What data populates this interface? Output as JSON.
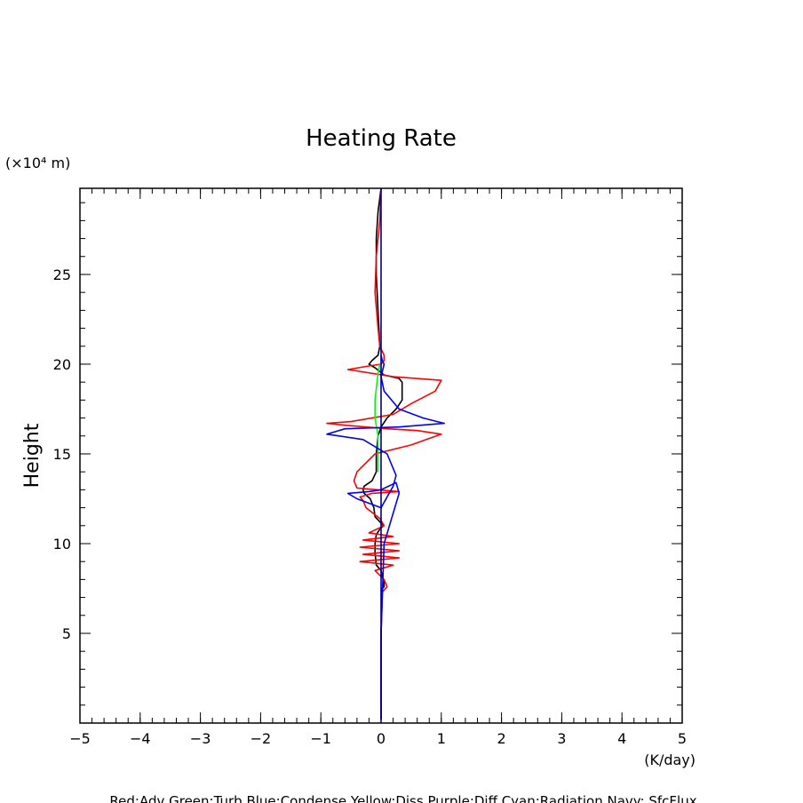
{
  "chart_data": {
    "type": "line",
    "title": "Heating Rate",
    "ylabel": "Height",
    "yunit": "(×10⁴ m)",
    "xunit": "(K/day)",
    "footer": "Red:Adv  Green:Turb  Blue:Condense  Yellow:Diss  Purple:Diff  Cyan:Radiation  Navy: SfcFlux",
    "xlim": [
      -5,
      5
    ],
    "ylim": [
      0,
      29.8
    ],
    "xticks": [
      "−5",
      "−4",
      "−3",
      "−2",
      "−1",
      "0",
      "1",
      "2",
      "3",
      "4",
      "5"
    ],
    "xtick_values": [
      -5,
      -4,
      -3,
      -2,
      -1,
      0,
      1,
      2,
      3,
      4,
      5
    ],
    "yticks": [
      "5",
      "10",
      "15",
      "20",
      "25"
    ],
    "ytick_values": [
      5,
      10,
      15,
      20,
      25
    ],
    "grid": false,
    "series": [
      {
        "key": "total",
        "color": "#000000",
        "x": [
          0,
          0,
          0.02,
          0.05,
          0.05,
          0,
          -0.08,
          -0.1,
          -0.1,
          -0.08,
          -0.02,
          0.04,
          -0.1,
          -0.12,
          -0.18,
          -0.28,
          -0.3,
          -0.28,
          -0.15,
          -0.08,
          -0.08,
          -0.05,
          0,
          0.1,
          0.25,
          0.35,
          0.35,
          0.3,
          0.05,
          -0.1,
          -0.2,
          -0.15,
          -0.05,
          -0.02,
          -0.05,
          -0.08,
          -0.08,
          -0.05,
          0
        ],
        "y": [
          0.2,
          5,
          7.5,
          7.6,
          7.8,
          8.5,
          8.8,
          9.5,
          10,
          10.5,
          10.8,
          11,
          11.5,
          12,
          12.5,
          12.8,
          13,
          13.2,
          13.5,
          14,
          15,
          16,
          16.5,
          17,
          17.5,
          18,
          19,
          19.2,
          19.4,
          19.8,
          20,
          20.2,
          20.5,
          21,
          23,
          25,
          27,
          28.5,
          29.8
        ]
      },
      {
        "key": "adv",
        "color": "#ff0000",
        "x": [
          0,
          0,
          0.02,
          0.1,
          0.05,
          -0.1,
          0.2,
          -0.35,
          0.3,
          -0.3,
          0.3,
          -0.35,
          0.3,
          -0.3,
          0.2,
          -0.2,
          0.05,
          -0.02,
          -0.25,
          -0.3,
          -0.35,
          -0.15,
          0.3,
          -0.4,
          -0.45,
          -0.4,
          -0.1,
          0.5,
          1.0,
          0.6,
          0.1,
          -0.6,
          -0.9,
          -0.5,
          0.2,
          0.5,
          0.9,
          1.0,
          0.2,
          -0.55,
          -0.2,
          0.0,
          0.05,
          0.05,
          -0.02,
          -0.05,
          -0.1,
          -0.08,
          -0.02,
          0
        ],
        "y": [
          0.2,
          5,
          7.3,
          7.6,
          8,
          8.5,
          8.8,
          9,
          9.2,
          9.4,
          9.6,
          9.8,
          10,
          10.2,
          10.4,
          10.6,
          11,
          11.4,
          12,
          12.4,
          12.6,
          12.8,
          12.9,
          13.1,
          13.5,
          14,
          15,
          15.5,
          16.1,
          16.3,
          16.4,
          16.6,
          16.7,
          16.8,
          17.2,
          17.8,
          18.5,
          19.1,
          19.3,
          19.7,
          19.9,
          20,
          20.2,
          20.5,
          21,
          22,
          24,
          26,
          28,
          29.8
        ]
      },
      {
        "key": "turb",
        "color": "#00ff00",
        "x": [
          -0.05,
          -0.05,
          -0.1,
          -0.1,
          -0.05,
          -0.02
        ],
        "y": [
          14,
          16,
          17,
          18,
          19.5,
          20
        ]
      },
      {
        "key": "cond",
        "color": "#0000ff",
        "x": [
          0,
          0,
          0.05,
          0.3,
          0.25,
          0,
          -0.2,
          -0.55,
          -0.4,
          0,
          0.2,
          0.25,
          0.1,
          -0.3,
          -0.9,
          -0.6,
          0.3,
          1.05,
          0.7,
          0.3,
          0.05,
          0,
          0.05,
          0.02,
          0
        ],
        "y": [
          0.2,
          5,
          10,
          12.8,
          13.4,
          13,
          12.9,
          12.8,
          12.5,
          12,
          13.2,
          13.8,
          15,
          15.8,
          16.1,
          16.4,
          16.5,
          16.7,
          17,
          17.5,
          18.5,
          19.3,
          20,
          20.2,
          20.5
        ]
      },
      {
        "key": "sfc",
        "color": "#000080",
        "x": [
          0,
          0
        ],
        "y": [
          0,
          29.8
        ]
      }
    ]
  }
}
